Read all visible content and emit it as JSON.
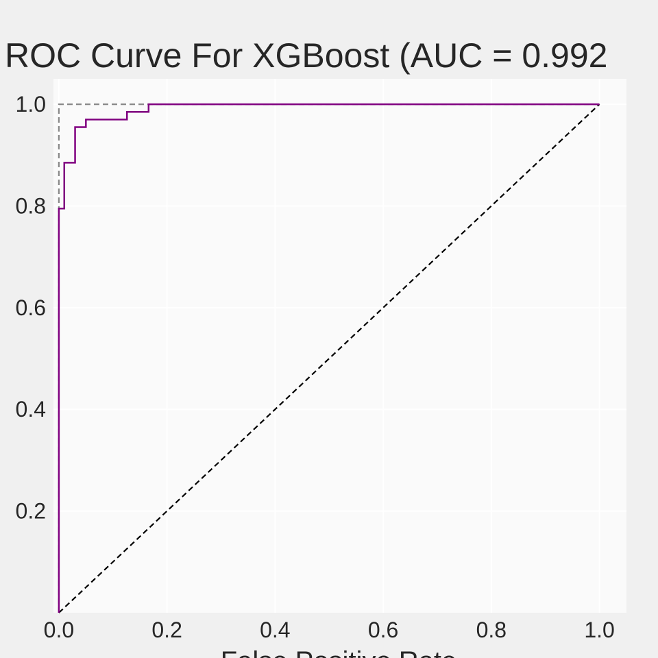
{
  "chart_data": {
    "type": "line",
    "title": "ROC Curve For XGBoost (AUC =  0.992",
    "xlabel": "False Positive Rate",
    "ylabel": "",
    "xlim": [
      -0.01,
      1.05
    ],
    "ylim": [
      0.0,
      1.05
    ],
    "x_ticks": [
      "0.0",
      "0.2",
      "0.4",
      "0.6",
      "0.8",
      "1.0"
    ],
    "y_ticks": [
      "0.2",
      "0.4",
      "0.6",
      "0.8",
      "1.0"
    ],
    "grid": true,
    "series": [
      {
        "style": "solid",
        "color": "#800080",
        "points": [
          [
            0.0,
            0.0
          ],
          [
            0.0,
            0.795
          ],
          [
            0.01,
            0.795
          ],
          [
            0.01,
            0.885
          ],
          [
            0.03,
            0.885
          ],
          [
            0.03,
            0.955
          ],
          [
            0.05,
            0.955
          ],
          [
            0.05,
            0.97
          ],
          [
            0.126,
            0.97
          ],
          [
            0.126,
            0.985
          ],
          [
            0.166,
            0.985
          ],
          [
            0.166,
            1.0
          ],
          [
            1.0,
            1.0
          ]
        ]
      },
      {
        "style": "dashed",
        "color": "#888888",
        "points": [
          [
            0.0,
            0.0
          ],
          [
            0.0,
            1.0
          ],
          [
            1.0,
            1.0
          ]
        ]
      },
      {
        "style": "dashed",
        "color": "#000000",
        "points": [
          [
            0.0,
            0.0
          ],
          [
            1.0,
            1.0
          ]
        ]
      }
    ]
  }
}
